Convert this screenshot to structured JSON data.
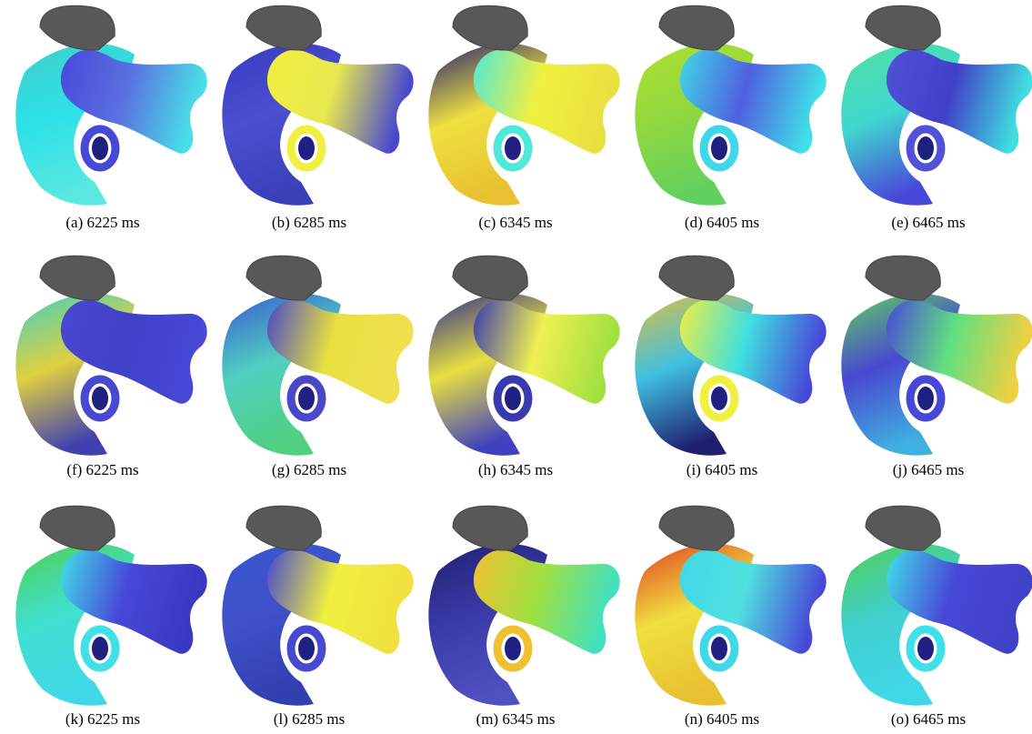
{
  "figure": {
    "panels": [
      {
        "caption": "(a) 6225 ms"
      },
      {
        "caption": "(b) 6285 ms"
      },
      {
        "caption": "(c) 6345 ms"
      },
      {
        "caption": "(d) 6405 ms"
      },
      {
        "caption": "(e) 6465 ms"
      },
      {
        "caption": "(f) 6225 ms"
      },
      {
        "caption": "(g) 6285 ms"
      },
      {
        "caption": "(h) 6345 ms"
      },
      {
        "caption": "(i) 6405 ms"
      },
      {
        "caption": "(j) 6465 ms"
      },
      {
        "caption": "(k) 6225 ms"
      },
      {
        "caption": "(l) 6285 ms"
      },
      {
        "caption": "(m) 6345 ms"
      },
      {
        "caption": "(n) 6405 ms"
      },
      {
        "caption": "(o) 6465 ms"
      }
    ]
  }
}
